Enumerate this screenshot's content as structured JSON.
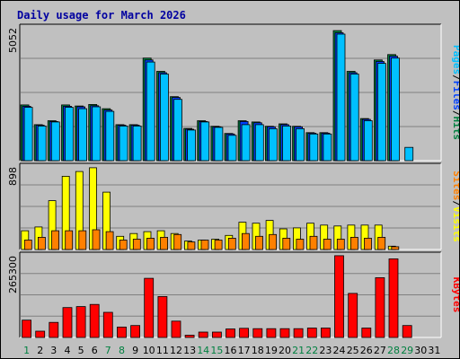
{
  "chart_data": {
    "type": "bar",
    "title": "Daily usage for March 2026",
    "x": [
      "1",
      "2",
      "3",
      "4",
      "5",
      "6",
      "7",
      "8",
      "9",
      "10",
      "11",
      "12",
      "13",
      "14",
      "15",
      "16",
      "17",
      "18",
      "19",
      "20",
      "21",
      "22",
      "23",
      "24",
      "25",
      "26",
      "27",
      "28",
      "29",
      "30",
      "31"
    ],
    "weekend_days": [
      "1",
      "7",
      "8",
      "14",
      "15",
      "21",
      "22",
      "28",
      "29"
    ],
    "panels": [
      {
        "name": "hits-files-pages",
        "ymax_label": "5052",
        "ymax": 5052,
        "legend": [
          "Pages",
          "/",
          "Files",
          "/",
          "Hits"
        ],
        "legend_colors": [
          "#00c0ff",
          "#000000",
          "#0040ff",
          "#000000",
          "#008040"
        ],
        "series": [
          {
            "name": "Hits",
            "color": "#008040",
            "values": [
              2090,
              1350,
              1500,
              2090,
              2050,
              2110,
              1950,
              1350,
              1350,
              3850,
              3350,
              2400,
              1210,
              1500,
              1290,
              1020,
              1500,
              1450,
              1290,
              1380,
              1290,
              1050,
              1050,
              4880,
              3350,
              1580,
              3780,
              3980,
              0,
              0,
              0
            ]
          },
          {
            "name": "Files",
            "color": "#0040ff",
            "values": [
              2040,
              1330,
              1470,
              2040,
              2020,
              2060,
              1900,
              1330,
              1330,
              3780,
              3300,
              2370,
              1180,
              1470,
              1270,
              1000,
              1470,
              1420,
              1270,
              1350,
              1270,
              1030,
              1030,
              4800,
              3300,
              1550,
              3720,
              3920,
              0,
              0,
              0
            ]
          },
          {
            "name": "Pages",
            "color": "#00c0ff",
            "values": [
              2000,
              1300,
              1450,
              2000,
              1950,
              2020,
              1850,
              1300,
              1300,
              3700,
              3250,
              2300,
              1150,
              1450,
              1250,
              950,
              1350,
              1350,
              1200,
              1300,
              1200,
              1000,
              1000,
              4750,
              3250,
              1500,
              3650,
              3850,
              500,
              0,
              0
            ]
          }
        ]
      },
      {
        "name": "visits-sites",
        "ymax_label": "898",
        "ymax": 898,
        "legend": [
          "Sites",
          "/",
          "Visits"
        ],
        "legend_colors": [
          "#ff8000",
          "#000000",
          "#ffff00"
        ],
        "series": [
          {
            "name": "Visits",
            "color": "#ffff00",
            "values": [
              200,
              240,
              520,
              780,
              830,
              870,
              610,
              140,
              170,
              190,
              200,
              170,
              90,
              100,
              110,
              150,
              290,
              280,
              310,
              220,
              230,
              280,
              260,
              250,
              260,
              260,
              260,
              35,
              0,
              0,
              0
            ]
          },
          {
            "name": "Sites",
            "color": "#ff8000",
            "values": [
              100,
              130,
              200,
              200,
              200,
              210,
              190,
              100,
              110,
              120,
              130,
              160,
              80,
              100,
              100,
              120,
              170,
              140,
              160,
              120,
              110,
              140,
              110,
              110,
              130,
              120,
              130,
              30,
              0,
              0,
              0
            ]
          }
        ]
      },
      {
        "name": "kbytes",
        "ymax_label": "265300",
        "ymax": 265300,
        "legend": [
          "KBytes"
        ],
        "legend_colors": [
          "#ff0000"
        ],
        "series": [
          {
            "name": "KBytes",
            "color": "#ff0000",
            "values": [
              55000,
              20000,
              48000,
              95000,
              98000,
              105000,
              80000,
              33000,
              38000,
              188000,
              130000,
              52000,
              7000,
              17000,
              17000,
              27000,
              29000,
              28000,
              28000,
              28000,
              28000,
              30000,
              30000,
              260000,
              140000,
              30000,
              190000,
              250000,
              38000,
              0,
              0
            ]
          }
        ]
      }
    ]
  }
}
